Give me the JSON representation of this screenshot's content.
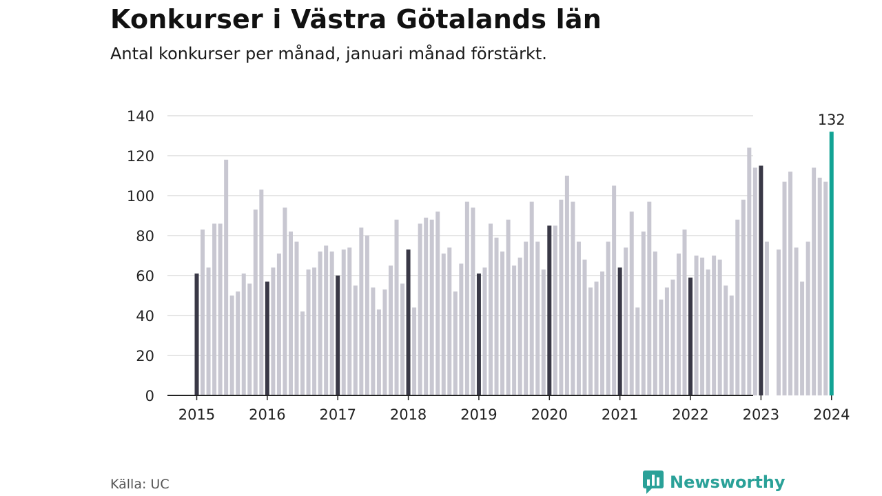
{
  "header": {
    "title": "Konkurser i Västra Götalands län",
    "subtitle": "Antal konkurser per månad, januari månad förstärkt."
  },
  "footer": {
    "source": "Källa: UC",
    "brand": "Newsworthy",
    "brand_icon": "bar-chart-speech-icon"
  },
  "colors": {
    "bar": "#c8c7d1",
    "january": "#393846",
    "latest": "#12a394",
    "grid": "#dddddd",
    "axis": "#222222",
    "brand": "#2aa198"
  },
  "chart_data": {
    "type": "bar",
    "title": "Konkurser i Västra Götalands län",
    "subtitle": "Antal konkurser per månad, januari månad förstärkt.",
    "ylim": [
      0,
      140
    ],
    "yticks": [
      "0",
      "20",
      "40",
      "60",
      "80",
      "100",
      "120",
      "140"
    ],
    "xticks": [
      "2015",
      "2016",
      "2017",
      "2018",
      "2019",
      "2020",
      "2021",
      "2022",
      "2023",
      "2024"
    ],
    "start": "2015-01",
    "grid": true,
    "highlight": "January of each year (dark bars); latest month (teal)",
    "latest_label": "132",
    "values": [
      61,
      83,
      64,
      86,
      86,
      118,
      50,
      52,
      61,
      56,
      93,
      103,
      57,
      64,
      71,
      94,
      82,
      77,
      42,
      63,
      64,
      72,
      75,
      72,
      60,
      73,
      74,
      55,
      84,
      80,
      54,
      43,
      53,
      65,
      88,
      56,
      73,
      44,
      86,
      89,
      88,
      92,
      71,
      74,
      52,
      66,
      97,
      94,
      61,
      64,
      86,
      79,
      72,
      88,
      65,
      69,
      77,
      97,
      77,
      63,
      85,
      85,
      98,
      110,
      97,
      77,
      68,
      54,
      57,
      62,
      77,
      105,
      64,
      74,
      92,
      44,
      82,
      97,
      72,
      48,
      54,
      58,
      71,
      83,
      59,
      70,
      69,
      63,
      70,
      68,
      55,
      50,
      88,
      98,
      124,
      114,
      115,
      77,
      null,
      73,
      107,
      112,
      74,
      57,
      77,
      114,
      109,
      107,
      132
    ]
  }
}
